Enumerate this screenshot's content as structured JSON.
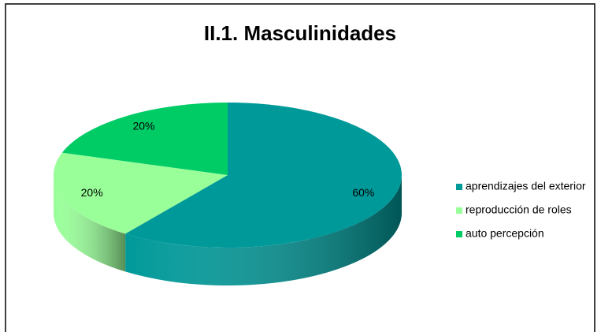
{
  "chart_data": {
    "type": "pie",
    "title": "II.1. Masculinidades",
    "categories": [
      "aprendizajes del exterior",
      "reproducción de roles",
      "auto percepción"
    ],
    "values": [
      60,
      20,
      20
    ],
    "value_labels": [
      "60%",
      "20%",
      "20%"
    ],
    "colors": [
      "#009999",
      "#99ff99",
      "#00cc66"
    ],
    "legend": "right"
  }
}
